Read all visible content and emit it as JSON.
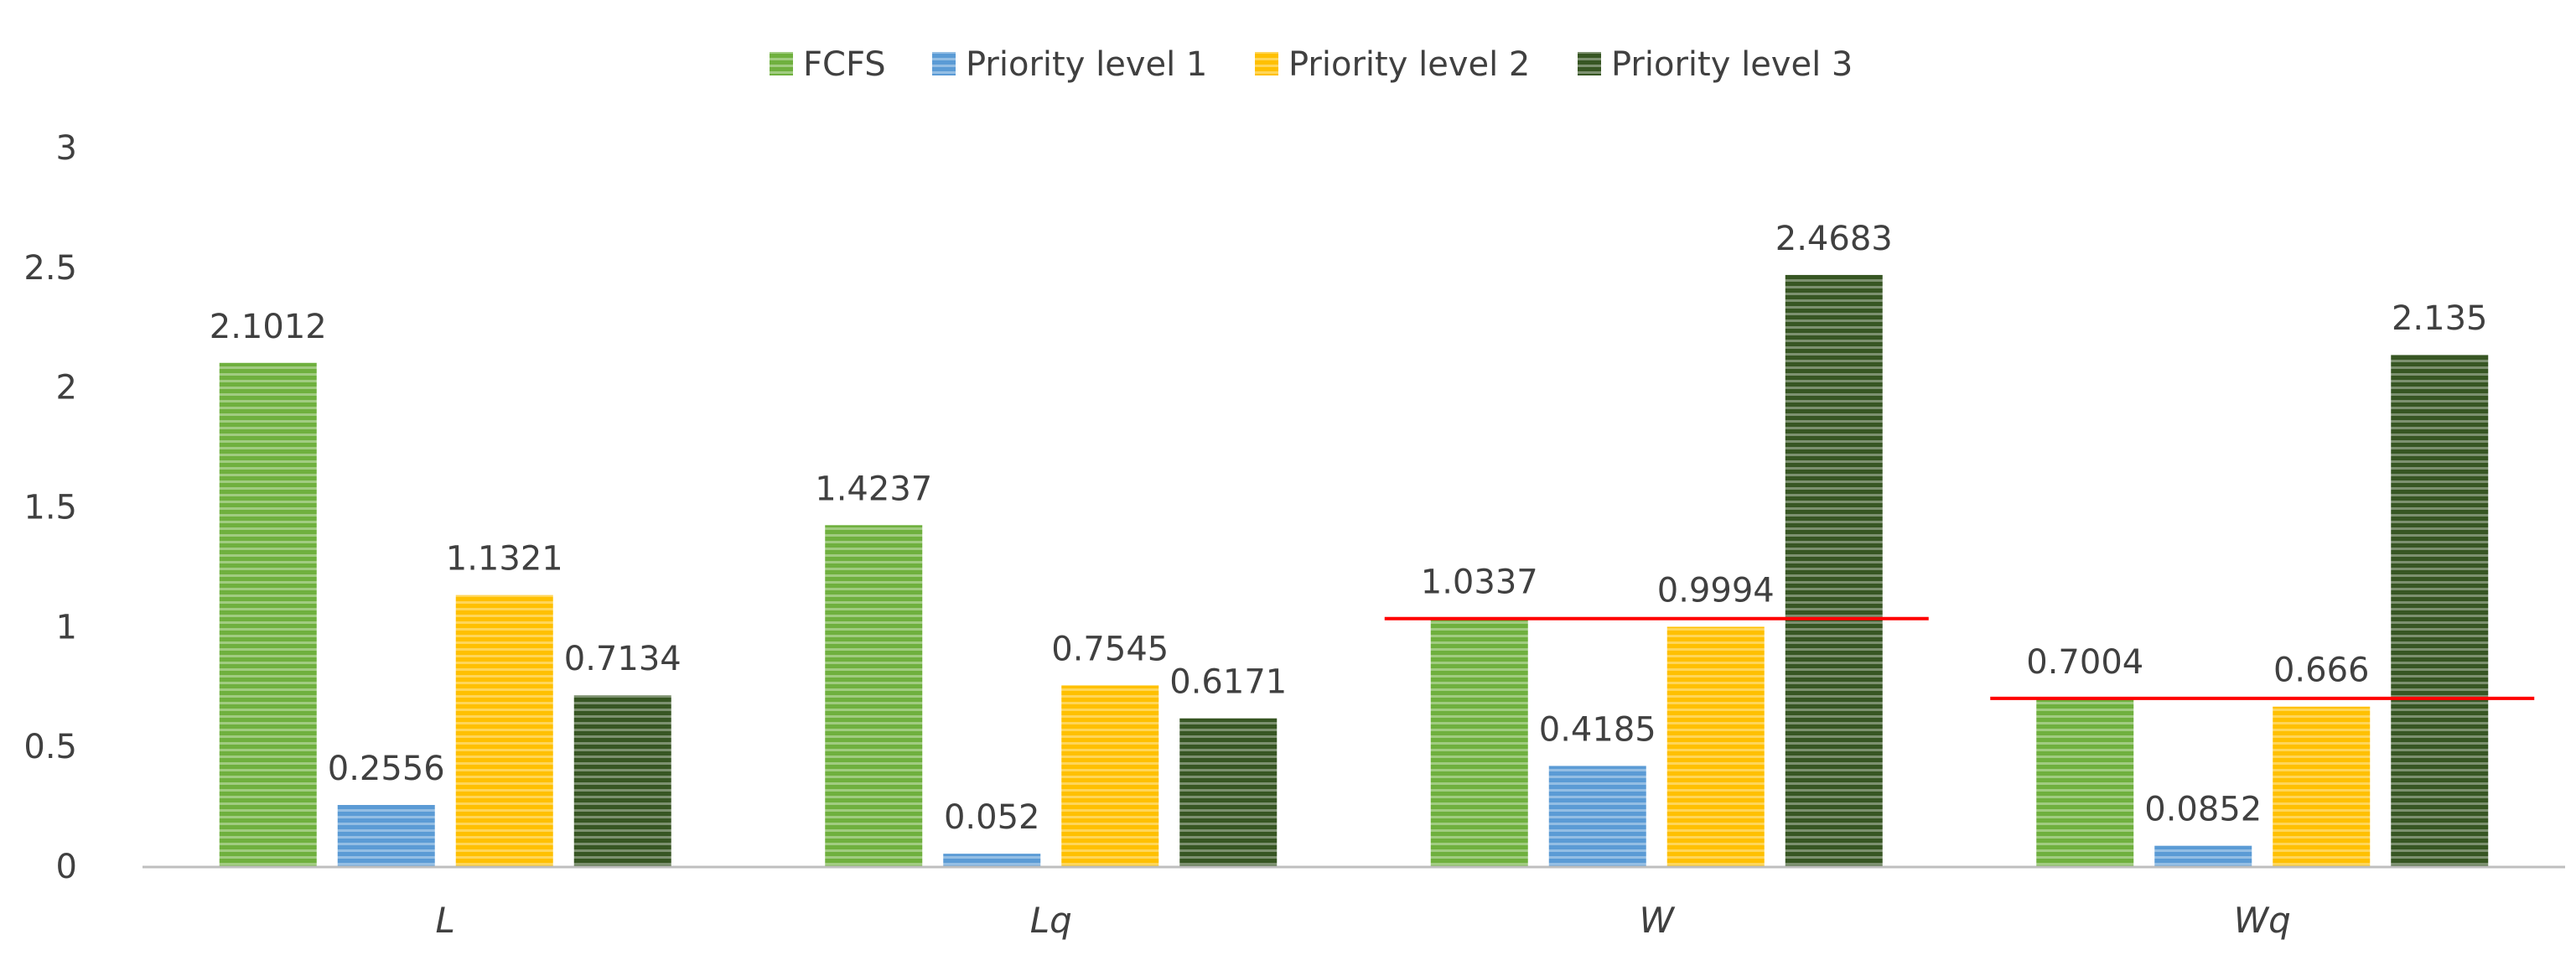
{
  "chart_data": {
    "type": "bar",
    "title": "",
    "xlabel": "",
    "ylabel": "",
    "categories": [
      "L",
      "Lq",
      "W",
      "Wq"
    ],
    "ylim": [
      0,
      3
    ],
    "yticks": [
      "0",
      "0.5",
      "1",
      "1.5",
      "2",
      "2.5",
      "3"
    ],
    "grid": false,
    "legend_position": "top-center",
    "series": [
      {
        "name": "FCFS",
        "color": "#6FB03E",
        "values": [
          2.1012,
          1.4237,
          1.0337,
          0.7004
        ],
        "labels": [
          "2.1012",
          "1.4237",
          "1.0337",
          "0.7004"
        ]
      },
      {
        "name": "Priority level 1",
        "color": "#5B9BD5",
        "values": [
          0.2556,
          0.052,
          0.4185,
          0.0852
        ],
        "labels": [
          "0.2556",
          "0.052",
          "0.4185",
          "0.0852"
        ]
      },
      {
        "name": "Priority level 2",
        "color": "#FFC000",
        "values": [
          1.1321,
          0.7545,
          0.9994,
          0.666
        ],
        "labels": [
          "1.1321",
          "0.7545",
          "0.9994",
          "0.666"
        ]
      },
      {
        "name": "Priority level 3",
        "color": "#375623",
        "values": [
          0.7134,
          0.6171,
          2.4683,
          2.135
        ],
        "labels": [
          "0.7134",
          "0.6171",
          "2.4683",
          "2.135"
        ]
      }
    ],
    "reference_lines": [
      {
        "category": "W",
        "value": 1.0337,
        "color": "#FF0000"
      },
      {
        "category": "Wq",
        "value": 0.7004,
        "color": "#FF0000"
      }
    ]
  }
}
